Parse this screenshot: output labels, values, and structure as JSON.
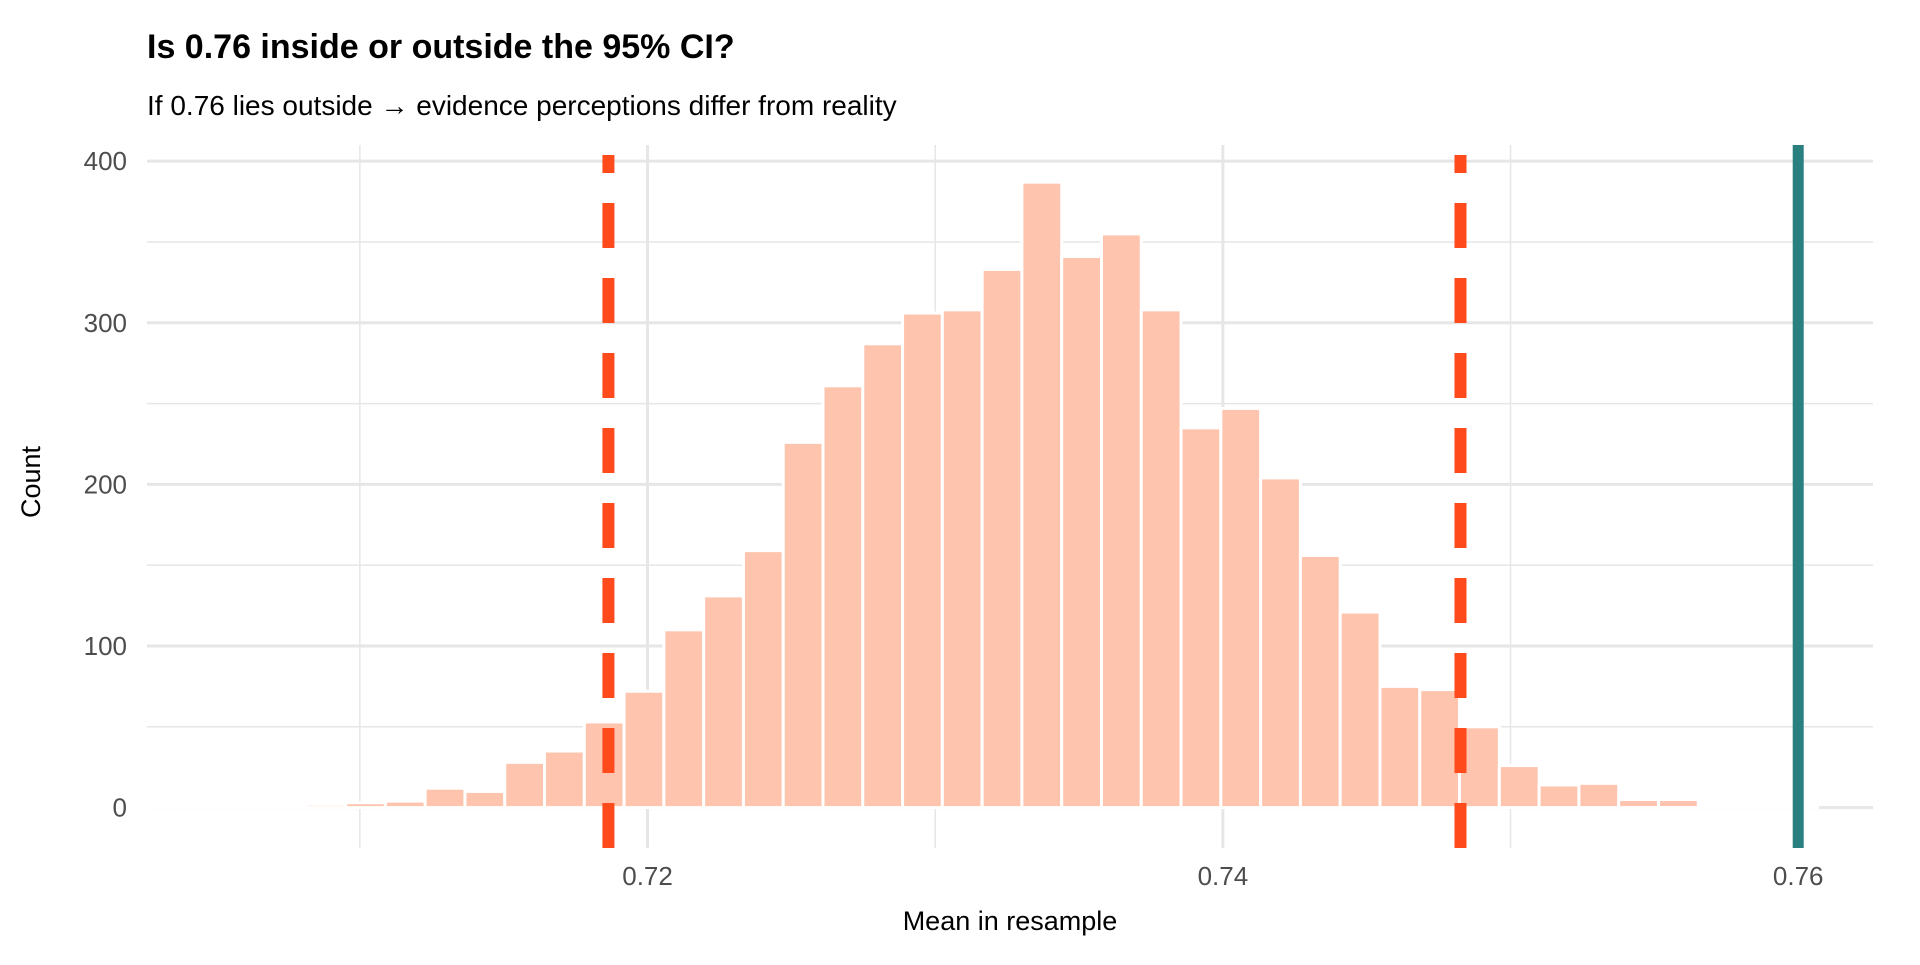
{
  "chart_data": {
    "type": "bar",
    "title": "Is 0.76 inside or outside the 95% CI?",
    "subtitle": "If 0.76 lies outside → evidence perceptions differ from reality",
    "xlabel": "Mean in resample",
    "ylabel": "Count",
    "xlim": [
      0.7026,
      0.7626
    ],
    "ylim": [
      -25,
      410
    ],
    "x_ticks": [
      0.72,
      0.74,
      0.76
    ],
    "x_tick_labels": [
      "0.72",
      "0.74",
      "0.76"
    ],
    "y_ticks": [
      0,
      100,
      200,
      300,
      400
    ],
    "y_tick_labels": [
      "0",
      "100",
      "200",
      "300",
      "400"
    ],
    "grid": true,
    "histogram": {
      "first_bin_center": 0.70328,
      "binwidth": 0.001383,
      "counts": [
        1,
        0,
        0,
        1,
        2,
        3,
        4,
        12,
        10,
        28,
        35,
        53,
        72,
        110,
        131,
        159,
        226,
        261,
        287,
        306,
        308,
        333,
        387,
        341,
        355,
        308,
        235,
        247,
        204,
        156,
        121,
        75,
        73,
        50,
        26,
        14,
        15,
        5,
        5,
        0,
        0,
        1
      ]
    },
    "ci_lower": 0.71864,
    "ci_upper": 0.74826,
    "reference_value": 0.76,
    "colors": {
      "bar_fill": "#fec4ae",
      "ci_line": "#ff4a1c",
      "reference_line": "#2a7f7f",
      "grid": "#e6e6e6"
    }
  }
}
